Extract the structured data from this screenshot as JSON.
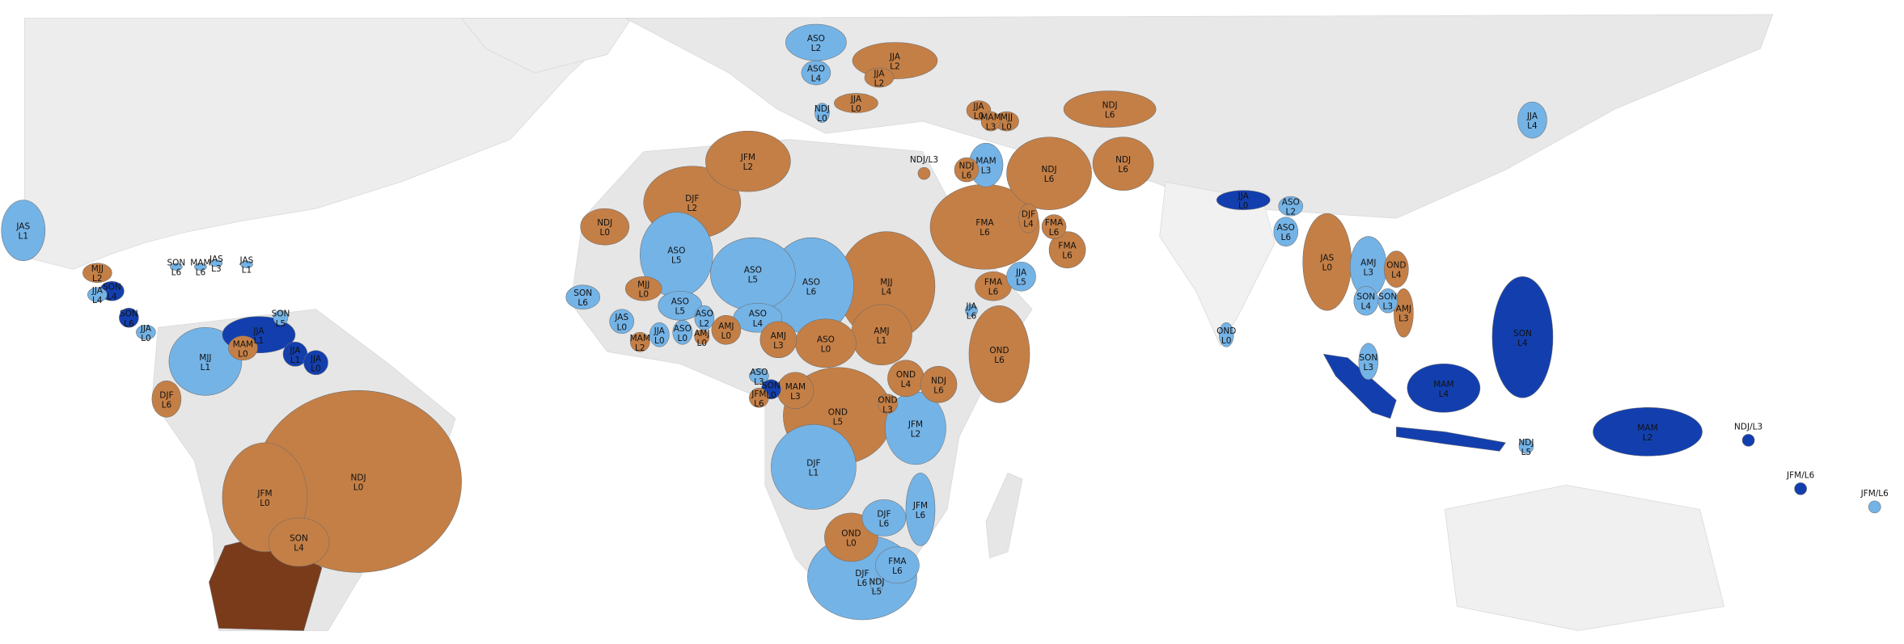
{
  "regions": [
    {
      "season": "ASO",
      "lead": "L2",
      "color": "#74b3e6"
    },
    {
      "season": "ASO",
      "lead": "L4",
      "color": "#74b3e6"
    },
    {
      "season": "JJA",
      "lead": "L2",
      "color": "#c47f46"
    },
    {
      "season": "JJA",
      "lead": "L2",
      "color": "#c47f46"
    },
    {
      "season": "JJA",
      "lead": "L0",
      "color": "#c47f46"
    },
    {
      "season": "NDJ",
      "lead": "L0",
      "color": "#74b3e6"
    },
    {
      "season": "JJA",
      "lead": "L0",
      "color": "#c47f46"
    },
    {
      "season": "MAM",
      "lead": "L3",
      "color": "#c47f46"
    },
    {
      "season": "MJJ",
      "lead": "L0",
      "color": "#c47f46"
    },
    {
      "season": "NDJ",
      "lead": "L6",
      "color": "#c47f46"
    },
    {
      "season": "NDJ",
      "lead": "L6",
      "color": "#c47f46"
    },
    {
      "season": "MAM",
      "lead": "L3",
      "color": "#74b3e6"
    },
    {
      "season": "NDJ",
      "lead": "L6",
      "color": "#c47f46"
    },
    {
      "season": "NDJ",
      "lead": "L6",
      "color": "#c47f46"
    },
    {
      "season": "FMA",
      "lead": "L6",
      "color": "#c47f46"
    },
    {
      "season": "DJF",
      "lead": "L4",
      "color": "#c47f46"
    },
    {
      "season": "FMA",
      "lead": "L6",
      "color": "#c47f46"
    },
    {
      "season": "FMA",
      "lead": "L6",
      "color": "#c47f46"
    },
    {
      "season": "JJA",
      "lead": "L5",
      "color": "#74b3e6"
    },
    {
      "season": "FMA",
      "lead": "L6",
      "color": "#c47f46"
    },
    {
      "season": "JJA",
      "lead": "L6",
      "color": "#74b3e6"
    },
    {
      "season": "OND",
      "lead": "L6",
      "color": "#c47f46"
    },
    {
      "season": "JJA",
      "lead": "L4",
      "color": "#74b3e6"
    },
    {
      "season": "JJA",
      "lead": "L0",
      "color": "#133fae"
    },
    {
      "season": "ASO",
      "lead": "L2",
      "color": "#74b3e6"
    },
    {
      "season": "ASO",
      "lead": "L6",
      "color": "#74b3e6"
    },
    {
      "season": "JAS",
      "lead": "L0",
      "color": "#c47f46"
    },
    {
      "season": "AMJ",
      "lead": "L3",
      "color": "#74b3e6"
    },
    {
      "season": "OND",
      "lead": "L4",
      "color": "#c47f46"
    },
    {
      "season": "SON",
      "lead": "L4",
      "color": "#74b3e6"
    },
    {
      "season": "SON",
      "lead": "L3",
      "color": "#74b3e6"
    },
    {
      "season": "AMJ",
      "lead": "L3",
      "color": "#c47f46"
    },
    {
      "season": "OND",
      "lead": "L0",
      "color": "#74b3e6"
    },
    {
      "season": "SON",
      "lead": "L3",
      "color": "#74b3e6"
    },
    {
      "season": "SON",
      "lead": "L4",
      "color": "#133fae"
    },
    {
      "season": "MAM",
      "lead": "L4",
      "color": "#133fae"
    },
    {
      "season": "NDJ",
      "lead": "L5",
      "color": "#74b3e6"
    },
    {
      "season": "MAM",
      "lead": "L2",
      "color": "#133fae"
    },
    {
      "season": "JFM",
      "lead": "L2",
      "color": "#c47f46"
    },
    {
      "season": "DJF",
      "lead": "L2",
      "color": "#c47f46"
    },
    {
      "season": "NDJ",
      "lead": "L0",
      "color": "#c47f46"
    },
    {
      "season": "ASO",
      "lead": "L5",
      "color": "#74b3e6"
    },
    {
      "season": "ASO",
      "lead": "L5",
      "color": "#74b3e6"
    },
    {
      "season": "ASO",
      "lead": "L6",
      "color": "#74b3e6"
    },
    {
      "season": "MJJ",
      "lead": "L4",
      "color": "#c47f46"
    },
    {
      "season": "MJJ",
      "lead": "L0",
      "color": "#c47f46"
    },
    {
      "season": "ASO",
      "lead": "L5",
      "color": "#74b3e6"
    },
    {
      "season": "ASO",
      "lead": "L4",
      "color": "#74b3e6"
    },
    {
      "season": "AMJ",
      "lead": "L0",
      "color": "#c47f46"
    },
    {
      "season": "AMJ",
      "lead": "L3",
      "color": "#c47f46"
    },
    {
      "season": "ASO",
      "lead": "L0",
      "color": "#c47f46"
    },
    {
      "season": "AMJ",
      "lead": "L1",
      "color": "#c47f46"
    },
    {
      "season": "OND",
      "lead": "L4",
      "color": "#c47f46"
    },
    {
      "season": "NDJ",
      "lead": "L6",
      "color": "#c47f46"
    },
    {
      "season": "MAM",
      "lead": "L3",
      "color": "#c47f46"
    },
    {
      "season": "ASO",
      "lead": "L3",
      "color": "#74b3e6"
    },
    {
      "season": "SON",
      "lead": "L0",
      "color": "#133fae"
    },
    {
      "season": "JFM",
      "lead": "L6",
      "color": "#c47f46"
    },
    {
      "season": "OND",
      "lead": "L5",
      "color": "#c47f46"
    },
    {
      "season": "OND",
      "lead": "L3",
      "color": "#c47f46"
    },
    {
      "season": "JFM",
      "lead": "L2",
      "color": "#74b3e6"
    },
    {
      "season": "DJF",
      "lead": "L1",
      "color": "#74b3e6"
    },
    {
      "season": "DJF",
      "lead": "L6",
      "color": "#74b3e6"
    },
    {
      "season": "JFM",
      "lead": "L6",
      "color": "#74b3e6"
    },
    {
      "season": "OND",
      "lead": "L0",
      "color": "#c47f46"
    },
    {
      "season": "FMA",
      "lead": "L6",
      "color": "#74b3e6"
    },
    {
      "season": "DJF",
      "lead": "L6",
      "color": "#74b3e6"
    },
    {
      "season": "NDJ",
      "lead": "L5",
      "color": "#74b3e6"
    },
    {
      "season": "SON",
      "lead": "L6",
      "color": "#74b3e6"
    },
    {
      "season": "JAS",
      "lead": "L0",
      "color": "#74b3e6"
    },
    {
      "season": "MAM",
      "lead": "L2",
      "color": "#c47f46"
    },
    {
      "season": "JJA",
      "lead": "L0",
      "color": "#74b3e6"
    },
    {
      "season": "ASO",
      "lead": "L0",
      "color": "#74b3e6"
    },
    {
      "season": "ASO",
      "lead": "L2",
      "color": "#74b3e6"
    },
    {
      "season": "AMJ",
      "lead": "L0",
      "color": "#c47f46"
    },
    {
      "season": "JAS",
      "lead": "L1",
      "color": "#74b3e6"
    },
    {
      "season": "MJJ",
      "lead": "L2",
      "color": "#c47f46"
    },
    {
      "season": "SON",
      "lead": "L6",
      "color": "#74b3e6"
    },
    {
      "season": "MAM",
      "lead": "L6",
      "color": "#74b3e6"
    },
    {
      "season": "JAS",
      "lead": "L3",
      "color": "#74b3e6"
    },
    {
      "season": "JAS",
      "lead": "L1",
      "color": "#74b3e6"
    },
    {
      "season": "JJA",
      "lead": "L4",
      "color": "#74b3e6"
    },
    {
      "season": "SON",
      "lead": "L4",
      "color": "#133fae"
    },
    {
      "season": "SON",
      "lead": "L6",
      "color": "#133fae"
    },
    {
      "season": "JJA",
      "lead": "L0",
      "color": "#74b3e6"
    },
    {
      "season": "SON",
      "lead": "L5",
      "color": "#74b3e6"
    },
    {
      "season": "JJA",
      "lead": "L1",
      "color": "#133fae"
    },
    {
      "season": "MAM",
      "lead": "L0",
      "color": "#c47f46"
    },
    {
      "season": "JJA",
      "lead": "L1",
      "color": "#133fae"
    },
    {
      "season": "JJA",
      "lead": "L0",
      "color": "#133fae"
    },
    {
      "season": "MJJ",
      "lead": "L1",
      "color": "#74b3e6"
    },
    {
      "season": "DJF",
      "lead": "L6",
      "color": "#c47f46"
    },
    {
      "season": "NDJ",
      "lead": "L0",
      "color": "#c47f46"
    },
    {
      "season": "JFM",
      "lead": "L0",
      "color": "#c47f46"
    },
    {
      "season": "SON",
      "lead": "L4",
      "color": "#c47f46"
    }
  ],
  "islands": [
    {
      "label": "NDJ/L3",
      "color": "#c47f46"
    },
    {
      "label": "NDJ/L3",
      "color": "#133fae"
    },
    {
      "label": "JFM/L6",
      "color": "#133fae"
    },
    {
      "label": "JFM/L6",
      "color": "#74b3e6"
    }
  ]
}
